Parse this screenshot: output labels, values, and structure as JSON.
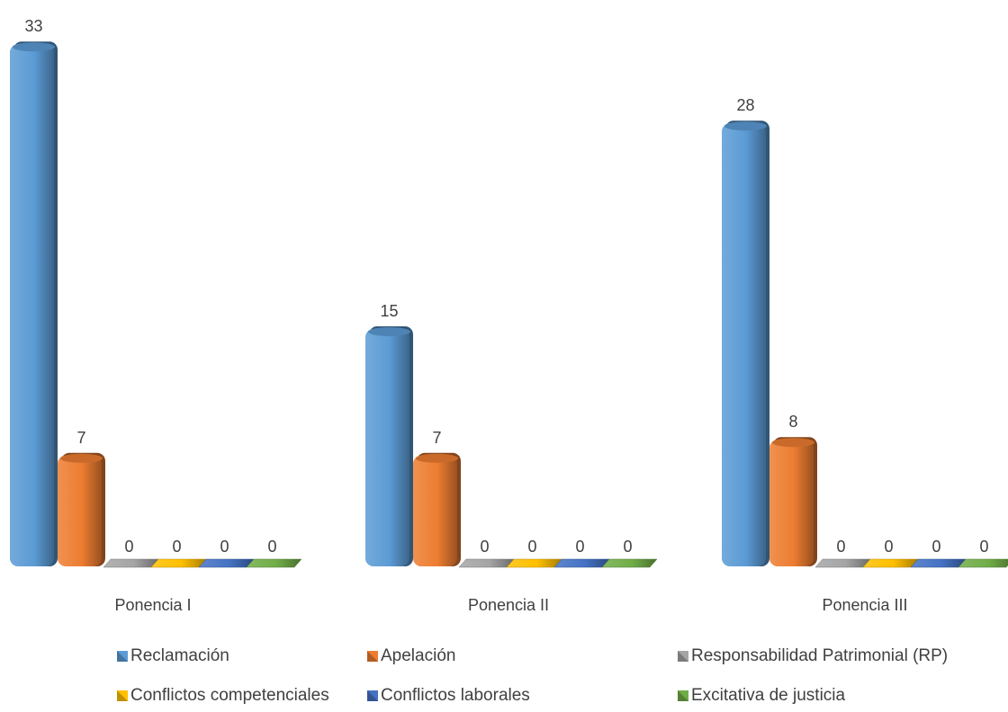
{
  "chart_data": {
    "type": "bar",
    "categories": [
      "Ponencia I",
      "Ponencia II",
      "Ponencia III"
    ],
    "series": [
      {
        "name": "Reclamación",
        "values": [
          33,
          15,
          28
        ],
        "color": "#5B9BD5"
      },
      {
        "name": "Apelación",
        "values": [
          7,
          7,
          8
        ],
        "color": "#ED7D31"
      },
      {
        "name": "Responsabilidad Patrimonial (RP)",
        "values": [
          0,
          0,
          0
        ],
        "color": "#A5A5A5"
      },
      {
        "name": "Conflictos competenciales",
        "values": [
          0,
          0,
          0
        ],
        "color": "#FFC000"
      },
      {
        "name": "Conflictos laborales",
        "values": [
          0,
          0,
          0
        ],
        "color": "#4472C4"
      },
      {
        "name": "Excitativa de justicia",
        "values": [
          0,
          0,
          0
        ],
        "color": "#70AD47"
      }
    ],
    "title": "",
    "xlabel": "",
    "ylabel": "",
    "ylim": [
      0,
      33
    ],
    "grid": false,
    "legend": "bottom",
    "data_labels": true
  }
}
